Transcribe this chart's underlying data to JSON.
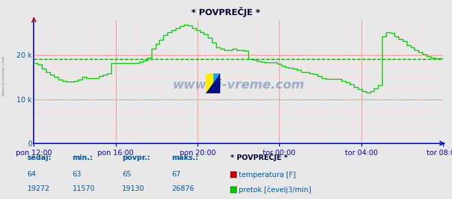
{
  "title": "* POVPREČJE *",
  "bg_color": "#e8e8e8",
  "plot_bg_color": "#e8e8e8",
  "line_color_flow": "#00cc00",
  "line_color_temp": "#cc0000",
  "avg_line_color": "#009900",
  "grid_color_major": "#ff9999",
  "grid_color_minor": "#ffdddd",
  "axis_color": "#0000cc",
  "text_color": "#0055aa",
  "title_color": "#000033",
  "watermark": "www.si-vreme.com",
  "yticks": [
    0,
    10000,
    20000
  ],
  "ytick_labels": [
    "0",
    "10 k",
    "20 k"
  ],
  "ylim": [
    0,
    28000
  ],
  "xtick_labels": [
    "pon 12:00",
    "pon 16:00",
    "pon 20:00",
    "tor 00:00",
    "tor 04:00",
    "tor 08:00"
  ],
  "avg_value": 19130,
  "stats": {
    "sedaj": {
      "temp": 64,
      "flow": 19272
    },
    "min": {
      "temp": 63,
      "flow": 11570
    },
    "povpr": {
      "temp": 65,
      "flow": 19130
    },
    "maks": {
      "temp": 67,
      "flow": 26876
    }
  },
  "legend_title": "* POVPREČJE *",
  "legend_items": [
    {
      "label": "temperatura [F]",
      "color": "#cc0000"
    },
    {
      "label": "pretok [čevelj3/min]",
      "color": "#00cc00"
    }
  ],
  "flow_data": [
    18200,
    17800,
    17000,
    16200,
    15500,
    15000,
    14500,
    14200,
    14000,
    14000,
    14200,
    14500,
    15000,
    14800,
    14800,
    14800,
    15200,
    15500,
    15800,
    18200,
    18200,
    18200,
    18200,
    18200,
    18200,
    18200,
    18500,
    18800,
    19500,
    21500,
    22500,
    23500,
    24500,
    25200,
    25700,
    26200,
    26600,
    26876,
    26700,
    26200,
    25700,
    25200,
    24700,
    24000,
    22800,
    21800,
    21500,
    21200,
    21200,
    21500,
    21200,
    21200,
    21000,
    19200,
    19000,
    18700,
    18500,
    18300,
    18300,
    18300,
    18000,
    17600,
    17200,
    17100,
    17000,
    16700,
    16200,
    16100,
    15800,
    15700,
    15200,
    14800,
    14600,
    14600,
    14600,
    14600,
    14200,
    13800,
    13300,
    12700,
    12200,
    11800,
    11570,
    11800,
    12500,
    13200,
    24200,
    25200,
    25000,
    24200,
    23700,
    23200,
    22200,
    21700,
    21200,
    20700,
    20200,
    19700,
    19400,
    19272,
    19272,
    19272
  ]
}
